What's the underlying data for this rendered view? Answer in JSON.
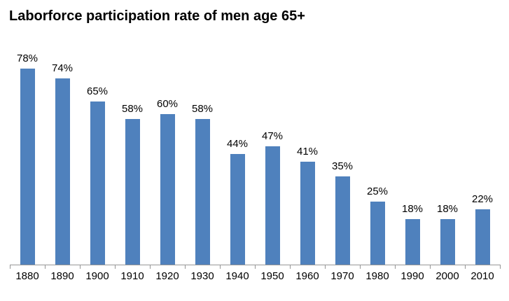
{
  "chart_data": {
    "type": "bar",
    "title": "Laborforce participation rate of men age 65+",
    "categories": [
      "1880",
      "1890",
      "1900",
      "1910",
      "1920",
      "1930",
      "1940",
      "1950",
      "1960",
      "1970",
      "1980",
      "1990",
      "2000",
      "2010"
    ],
    "values": [
      78,
      74,
      65,
      58,
      60,
      58,
      44,
      47,
      41,
      35,
      25,
      18,
      18,
      22
    ],
    "value_labels": [
      "78%",
      "74%",
      "65%",
      "58%",
      "60%",
      "58%",
      "44%",
      "47%",
      "41%",
      "35%",
      "25%",
      "18%",
      "18%",
      "22%"
    ],
    "xlabel": "",
    "ylabel": "",
    "ylim": [
      0,
      80
    ],
    "grid": false,
    "legend": false,
    "bar_color": "#4F81BD",
    "axis_color": "#969696",
    "text_color": "#000000"
  }
}
